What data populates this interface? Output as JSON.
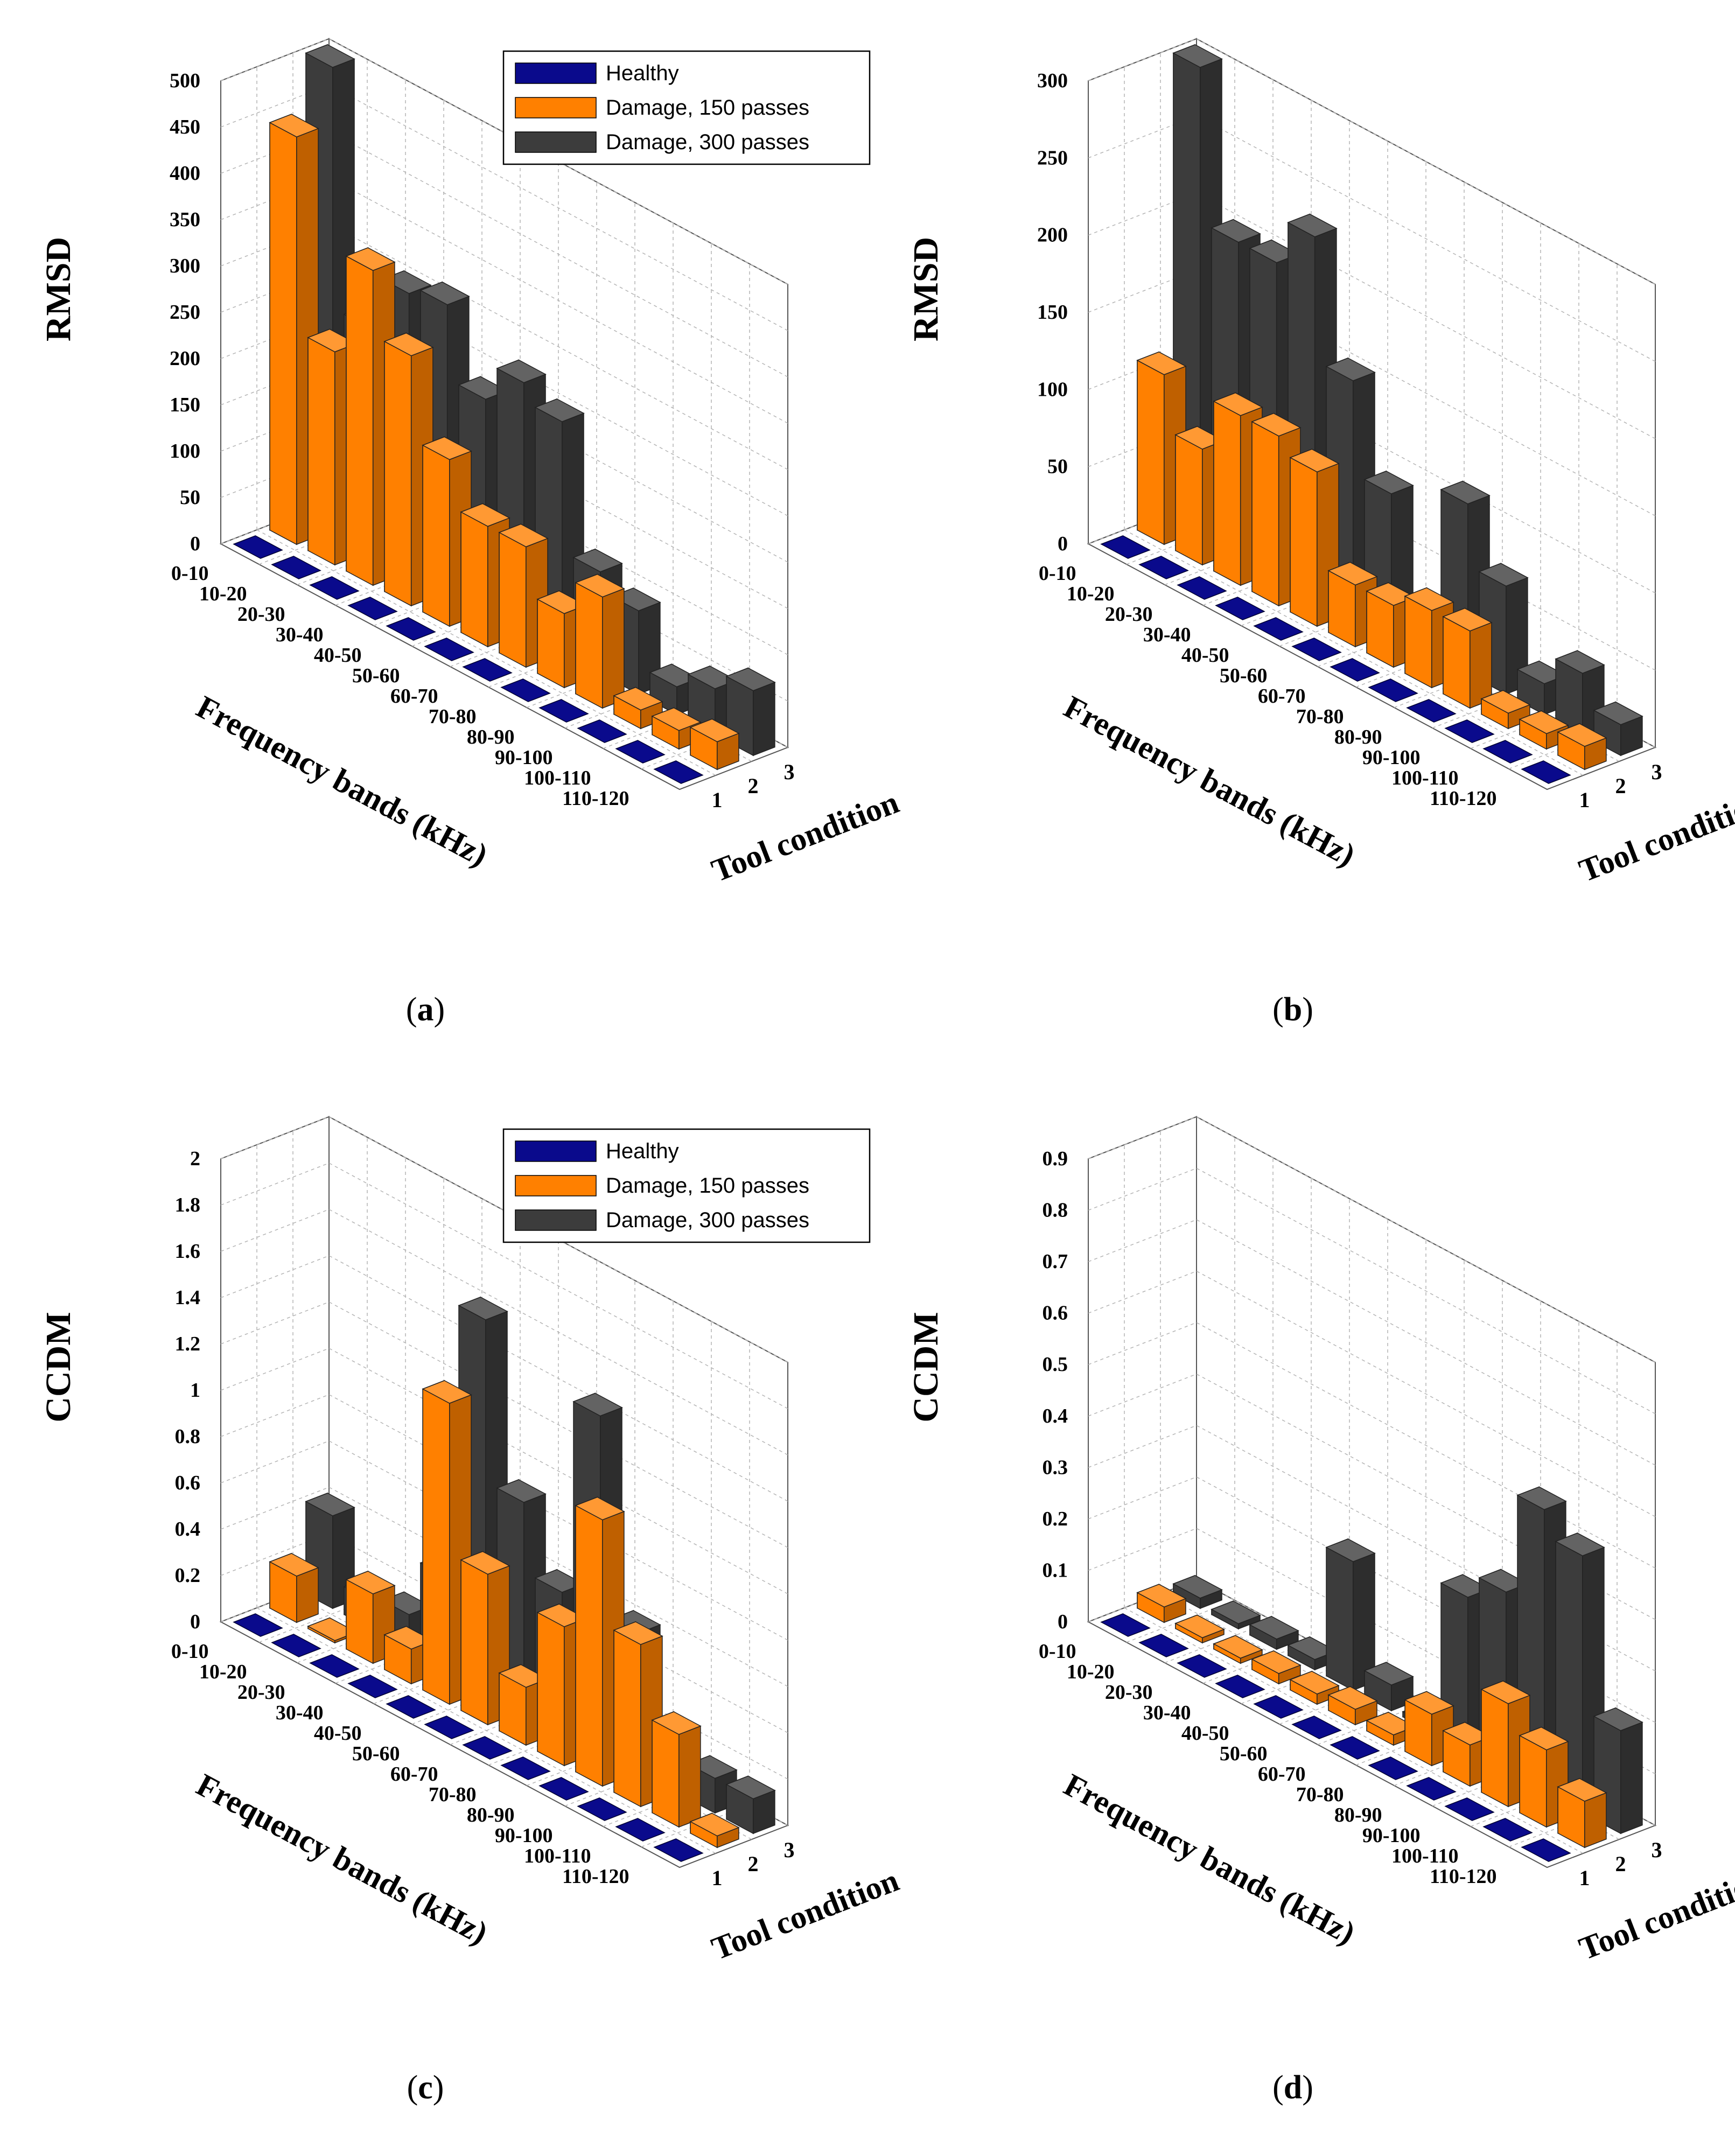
{
  "colors": {
    "healthy": "#0a0a8c",
    "damage150": "#ff8000",
    "damage300": "#3c3c3c",
    "grid": "#b4b4b4",
    "axis": "#555555",
    "text": "#000000"
  },
  "legend": {
    "items": [
      "Healthy",
      "Damage, 150 passes",
      "Damage, 300 passes"
    ]
  },
  "chart_data": [
    {
      "id": "a",
      "panel_label": "(a)",
      "panel_letter": "a",
      "type": "bar",
      "subtype": "3d-grouped-bar",
      "title": "",
      "ylabel": "RMSD",
      "xlabel": "Frequency bands (kHz)",
      "zlabel": "Tool condition",
      "ylim": [
        0,
        500
      ],
      "yticks": [
        "0",
        "50",
        "100",
        "150",
        "200",
        "250",
        "300",
        "350",
        "400",
        "450",
        "500"
      ],
      "categories": [
        "0-10",
        "10-20",
        "20-30",
        "30-40",
        "40-50",
        "50-60",
        "60-70",
        "70-80",
        "80-90",
        "90-100",
        "100-110",
        "110-120"
      ],
      "tool_conditions": [
        "1",
        "2",
        "3"
      ],
      "series": [
        {
          "name": "Healthy",
          "values": [
            0,
            0,
            0,
            0,
            0,
            0,
            0,
            0,
            0,
            0,
            0,
            0
          ]
        },
        {
          "name": "Damage, 150 passes",
          "values": [
            440,
            230,
            340,
            270,
            180,
            130,
            130,
            80,
            120,
            20,
            20,
            30
          ]
        },
        {
          "name": "Damage, 300 passes",
          "values": [
            500,
            240,
            300,
            310,
            230,
            270,
            250,
            110,
            90,
            30,
            50,
            70
          ]
        }
      ],
      "legend_shown": true
    },
    {
      "id": "b",
      "panel_label": "(b)",
      "panel_letter": "b",
      "type": "bar",
      "subtype": "3d-grouped-bar",
      "title": "",
      "ylabel": "RMSD",
      "xlabel": "Frequency bands (kHz)",
      "zlabel": "Tool condition",
      "ylim": [
        0,
        300
      ],
      "yticks": [
        "0",
        "50",
        "100",
        "150",
        "200",
        "250",
        "300"
      ],
      "categories": [
        "0-10",
        "10-20",
        "20-30",
        "30-40",
        "40-50",
        "50-60",
        "60-70",
        "70-80",
        "80-90",
        "90-100",
        "100-110",
        "110-120"
      ],
      "tool_conditions": [
        "1",
        "2",
        "3"
      ],
      "series": [
        {
          "name": "Healthy",
          "values": [
            0,
            0,
            0,
            0,
            0,
            0,
            0,
            0,
            0,
            0,
            0,
            0
          ]
        },
        {
          "name": "Damage, 150 passes",
          "values": [
            110,
            75,
            110,
            110,
            100,
            40,
            40,
            50,
            50,
            10,
            10,
            15
          ]
        },
        {
          "name": "Damage, 300 passes",
          "values": [
            300,
            200,
            200,
            230,
            150,
            90,
            20,
            110,
            70,
            20,
            40,
            20
          ]
        }
      ],
      "legend_shown": false
    },
    {
      "id": "c",
      "panel_label": "(c)",
      "panel_letter": "c",
      "type": "bar",
      "subtype": "3d-grouped-bar",
      "title": "",
      "ylabel": "CCDM",
      "xlabel": "Frequency bands (kHz)",
      "zlabel": "Tool condition",
      "ylim": [
        0,
        2
      ],
      "yticks": [
        "0",
        "0.2",
        "0.4",
        "0.6",
        "0.8",
        "1",
        "1.2",
        "1.4",
        "1.6",
        "1.8",
        "2"
      ],
      "categories": [
        "0-10",
        "10-20",
        "20-30",
        "30-40",
        "40-50",
        "50-60",
        "60-70",
        "70-80",
        "80-90",
        "90-100",
        "100-110",
        "110-120"
      ],
      "tool_conditions": [
        "1",
        "2",
        "3"
      ],
      "series": [
        {
          "name": "Healthy",
          "values": [
            0,
            0,
            0,
            0,
            0,
            0,
            0,
            0,
            0,
            0,
            0,
            0
          ]
        },
        {
          "name": "Damage, 150 passes",
          "values": [
            0.2,
            0.01,
            0.3,
            0.15,
            1.3,
            0.65,
            0.25,
            0.6,
            1.15,
            0.7,
            0.4,
            0.05
          ]
        },
        {
          "name": "Damage, 300 passes",
          "values": [
            0.4,
            0.12,
            0.15,
            0.4,
            1.6,
            0.9,
            0.6,
            1.45,
            0.6,
            0.1,
            0.15,
            0.15
          ]
        }
      ],
      "legend_shown": true
    },
    {
      "id": "d",
      "panel_label": "(d)",
      "panel_letter": "d",
      "type": "bar",
      "subtype": "3d-grouped-bar",
      "title": "",
      "ylabel": "CCDM",
      "xlabel": "Frequency bands (kHz)",
      "zlabel": "Tool condition",
      "ylim": [
        0,
        0.9
      ],
      "yticks": [
        "0",
        "0.1",
        "0.2",
        "0.3",
        "0.4",
        "0.5",
        "0.6",
        "0.7",
        "0.8",
        "0.9"
      ],
      "categories": [
        "0-10",
        "10-20",
        "20-30",
        "30-40",
        "40-50",
        "50-60",
        "60-70",
        "70-80",
        "80-90",
        "90-100",
        "100-110",
        "110-120"
      ],
      "tool_conditions": [
        "1",
        "2",
        "3"
      ],
      "series": [
        {
          "name": "Healthy",
          "values": [
            0,
            0,
            0,
            0,
            0,
            0,
            0,
            0,
            0,
            0,
            0,
            0
          ]
        },
        {
          "name": "Damage, 150 passes",
          "values": [
            0.03,
            0.01,
            0.01,
            0.02,
            0.02,
            0.03,
            0.02,
            0.1,
            0.08,
            0.2,
            0.15,
            0.09
          ]
        },
        {
          "name": "Damage, 300 passes",
          "values": [
            0.02,
            0.01,
            0.02,
            0.02,
            0.25,
            0.05,
            0.01,
            0.3,
            0.35,
            0.55,
            0.5,
            0.2
          ]
        }
      ],
      "legend_shown": false
    }
  ]
}
